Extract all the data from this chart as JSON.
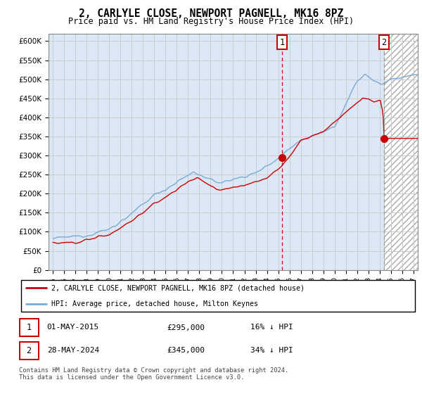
{
  "title": "2, CARLYLE CLOSE, NEWPORT PAGNELL, MK16 8PZ",
  "subtitle": "Price paid vs. HM Land Registry's House Price Index (HPI)",
  "ylim": [
    0,
    620000
  ],
  "yticks": [
    0,
    50000,
    100000,
    150000,
    200000,
    250000,
    300000,
    350000,
    400000,
    450000,
    500000,
    550000,
    600000
  ],
  "xlim_start": 1994.6,
  "xlim_end": 2027.4,
  "transaction1_date": 2015.33,
  "transaction1_price": 295000,
  "transaction2_date": 2024.38,
  "transaction2_price": 345000,
  "legend_line1": "2, CARLYLE CLOSE, NEWPORT PAGNELL, MK16 8PZ (detached house)",
  "legend_line2": "HPI: Average price, detached house, Milton Keynes",
  "footer": "Contains HM Land Registry data © Crown copyright and database right 2024.\nThis data is licensed under the Open Government Licence v3.0.",
  "hpi_color": "#7aaad4",
  "price_color": "#cc0000",
  "grid_color": "#cccccc",
  "background_plot": "#dce8f5",
  "dashed_line_color": "#cc0000",
  "dashed_line2_color": "#999999"
}
